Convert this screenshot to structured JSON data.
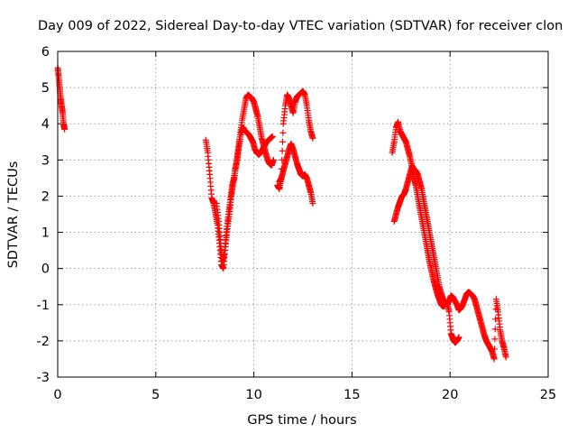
{
  "chart_data": {
    "type": "scatter",
    "title": "Day 009 of 2022, Sidereal Day-to-day VTEC variation (SDTVAR) for receiver clon",
    "xlabel": "GPS time / hours",
    "ylabel": "SDTVAR / TECUs",
    "xlim": [
      0,
      25
    ],
    "ylim": [
      -3,
      6
    ],
    "x_ticks": [
      "0",
      "5",
      "10",
      "15",
      "20",
      "25"
    ],
    "y_ticks": [
      "6",
      "5",
      "4",
      "3",
      "2",
      "1",
      "0",
      "-1",
      "-2",
      "-3"
    ],
    "grid": true,
    "marker": "+",
    "color": "#ff0000",
    "series": [
      {
        "segments": [
          {
            "x": [
              0.0,
              0.05,
              0.1,
              0.15,
              0.2,
              0.25,
              0.3,
              0.35
            ],
            "y": [
              5.55,
              5.3,
              5.0,
              4.7,
              4.5,
              4.3,
              4.0,
              3.85
            ]
          },
          {
            "x": [
              7.55,
              7.65,
              7.75,
              7.85,
              7.95,
              8.05,
              8.15,
              8.25,
              8.35,
              8.45,
              8.55,
              8.65,
              8.75,
              8.85,
              8.95,
              9.05,
              9.15,
              9.25,
              9.35,
              9.45,
              9.55,
              9.65,
              9.75,
              9.85,
              9.95,
              10.05,
              10.15,
              10.25,
              10.35,
              10.45,
              10.55,
              10.65,
              10.75,
              10.85,
              10.95
            ],
            "y": [
              3.55,
              3.2,
              2.6,
              1.95,
              1.8,
              1.5,
              1.2,
              0.7,
              0.1,
              0.0,
              0.6,
              1.1,
              1.5,
              2.0,
              2.4,
              2.75,
              3.0,
              3.4,
              3.75,
              3.9,
              3.8,
              3.75,
              3.7,
              3.6,
              3.5,
              3.3,
              3.2,
              3.15,
              3.2,
              3.3,
              3.4,
              3.5,
              3.55,
              3.6,
              3.65
            ]
          },
          {
            "x": [
              8.1,
              8.2,
              8.3,
              8.4,
              8.5,
              8.6,
              8.7,
              8.8,
              8.9,
              9.0,
              9.1,
              9.2,
              9.3,
              9.4,
              9.5,
              9.6,
              9.7,
              9.8,
              9.9,
              10.0,
              10.1,
              10.2,
              10.3,
              10.4,
              10.5,
              10.6,
              10.7,
              10.8,
              10.9,
              11.0
            ],
            "y": [
              1.8,
              1.3,
              0.7,
              0.2,
              0.4,
              1.0,
              1.5,
              1.9,
              2.3,
              2.5,
              2.9,
              3.3,
              3.7,
              4.1,
              4.4,
              4.7,
              4.8,
              4.75,
              4.7,
              4.6,
              4.4,
              4.2,
              3.9,
              3.6,
              3.4,
              3.2,
              3.0,
              2.9,
              2.85,
              3.0
            ]
          },
          {
            "x": [
              11.2,
              11.3,
              11.4,
              11.5,
              11.6,
              11.7,
              11.8,
              11.9,
              12.0,
              12.1,
              12.2,
              12.3,
              12.4,
              12.5,
              12.6,
              12.7,
              12.8,
              12.9,
              13.0
            ],
            "y": [
              2.3,
              2.2,
              2.5,
              4.0,
              4.5,
              4.8,
              4.7,
              4.5,
              4.3,
              4.6,
              4.75,
              4.8,
              4.85,
              4.9,
              4.8,
              4.5,
              4.1,
              3.8,
              3.6
            ]
          },
          {
            "x": [
              11.3,
              11.4,
              11.5,
              11.6,
              11.7,
              11.8,
              11.9,
              12.0,
              12.1,
              12.2,
              12.3,
              12.4,
              12.5,
              12.6,
              12.7,
              12.8,
              12.9,
              13.0
            ],
            "y": [
              2.4,
              2.5,
              2.7,
              2.9,
              3.1,
              3.3,
              3.45,
              3.3,
              3.1,
              2.9,
              2.75,
              2.6,
              2.55,
              2.6,
              2.5,
              2.3,
              2.1,
              1.8
            ]
          },
          {
            "x": [
              17.05,
              17.15,
              17.25,
              17.35,
              17.45,
              17.55,
              17.65,
              17.75,
              17.85,
              17.95,
              18.05,
              18.15,
              18.25,
              18.35,
              18.45,
              18.55,
              18.65,
              18.75,
              18.85,
              18.95,
              19.05,
              19.15,
              19.25,
              19.35,
              19.45,
              19.55,
              19.65,
              19.75,
              19.85,
              19.95,
              20.05,
              20.15,
              20.25,
              20.35,
              20.45,
              20.55,
              20.65,
              20.75,
              20.85,
              20.95,
              21.05,
              21.15,
              21.25,
              21.35,
              21.45,
              21.55,
              21.65,
              21.75,
              21.85,
              21.95,
              22.05,
              22.15,
              22.25,
              22.35,
              22.45,
              22.55,
              22.65,
              22.75,
              22.85
            ],
            "y": [
              3.2,
              3.5,
              3.9,
              4.05,
              3.8,
              3.7,
              3.6,
              3.5,
              3.3,
              3.1,
              2.85,
              2.75,
              2.7,
              2.6,
              2.4,
              2.2,
              1.9,
              1.6,
              1.3,
              1.0,
              0.7,
              0.4,
              0.1,
              -0.2,
              -0.5,
              -0.7,
              -0.85,
              -0.95,
              -1.0,
              -0.9,
              -0.75,
              -0.8,
              -0.9,
              -1.0,
              -1.15,
              -1.1,
              -1.0,
              -0.85,
              -0.7,
              -0.65,
              -0.7,
              -0.75,
              -0.85,
              -1.05,
              -1.25,
              -1.45,
              -1.65,
              -1.85,
              -2.0,
              -2.1,
              -2.2,
              -2.3,
              -2.5,
              -0.85,
              -1.2,
              -1.7,
              -2.0,
              -2.2,
              -2.45
            ]
          },
          {
            "x": [
              17.15,
              17.25,
              17.35,
              17.45,
              17.55,
              17.65,
              17.75,
              17.85,
              17.95,
              18.05,
              18.15,
              18.25,
              18.35,
              18.45,
              18.55,
              18.65,
              18.75,
              18.85,
              18.95,
              19.05,
              19.15,
              19.25,
              19.35,
              19.45,
              19.55,
              19.65,
              19.75,
              19.85,
              19.95,
              20.05,
              20.15,
              20.25,
              20.35,
              20.45
            ],
            "y": [
              1.3,
              1.5,
              1.7,
              1.85,
              2.0,
              2.05,
              2.2,
              2.4,
              2.6,
              2.8,
              2.5,
              2.3,
              2.0,
              1.7,
              1.4,
              1.1,
              0.8,
              0.5,
              0.2,
              -0.05,
              -0.3,
              -0.5,
              -0.7,
              -0.85,
              -1.0,
              -1.05,
              -1.0,
              -0.95,
              -1.2,
              -1.8,
              -1.95,
              -2.05,
              -2.0,
              -1.9
            ]
          }
        ]
      }
    ]
  }
}
